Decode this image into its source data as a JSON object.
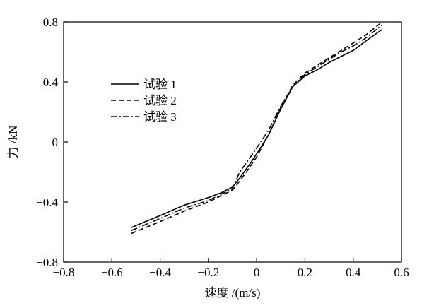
{
  "chart_data": {
    "type": "line",
    "title": "",
    "xlabel": "速度 /(m/s)",
    "ylabel": "力 /kN",
    "xlim": [
      -0.8,
      0.6
    ],
    "ylim": [
      -0.8,
      0.8
    ],
    "xticks": [
      -0.8,
      -0.6,
      -0.4,
      -0.2,
      0,
      0.2,
      0.4,
      0.6
    ],
    "yticks": [
      -0.8,
      -0.4,
      0,
      0.4,
      0.8
    ],
    "xtick_labels": [
      "−0.8",
      "−0.6",
      "−0.4",
      "−0.2",
      "0",
      "0.2",
      "0.4",
      "0.6"
    ],
    "ytick_labels": [
      "−0.8",
      "−0.4",
      "0",
      "0.4",
      "0.8"
    ],
    "grid": false,
    "legend_position": "upper-left",
    "series": [
      {
        "name": "试验 1",
        "style": "solid",
        "color": "#000000",
        "x": [
          -0.52,
          -0.4,
          -0.3,
          -0.2,
          -0.15,
          -0.1,
          -0.07,
          -0.03,
          0.0,
          0.05,
          0.1,
          0.15,
          0.2,
          0.25,
          0.3,
          0.35,
          0.4,
          0.45,
          0.52
        ],
        "y": [
          -0.57,
          -0.49,
          -0.42,
          -0.37,
          -0.34,
          -0.3,
          -0.24,
          -0.15,
          -0.08,
          0.05,
          0.22,
          0.37,
          0.44,
          0.48,
          0.53,
          0.57,
          0.61,
          0.67,
          0.75
        ]
      },
      {
        "name": "试验 2",
        "style": "dashed",
        "color": "#000000",
        "x": [
          -0.52,
          -0.4,
          -0.3,
          -0.2,
          -0.15,
          -0.1,
          -0.07,
          -0.03,
          0.0,
          0.05,
          0.1,
          0.15,
          0.2,
          0.25,
          0.3,
          0.35,
          0.4,
          0.45,
          0.52
        ],
        "y": [
          -0.61,
          -0.53,
          -0.46,
          -0.4,
          -0.36,
          -0.32,
          -0.26,
          -0.17,
          -0.1,
          0.05,
          0.23,
          0.38,
          0.46,
          0.51,
          0.56,
          0.61,
          0.66,
          0.71,
          0.8
        ]
      },
      {
        "name": "试验 3",
        "style": "dashdot",
        "color": "#000000",
        "x": [
          -0.52,
          -0.4,
          -0.3,
          -0.2,
          -0.15,
          -0.1,
          -0.07,
          -0.03,
          0.0,
          0.05,
          0.1,
          0.15,
          0.2,
          0.25,
          0.3,
          0.35,
          0.4,
          0.45,
          0.52
        ],
        "y": [
          -0.59,
          -0.51,
          -0.44,
          -0.39,
          -0.35,
          -0.31,
          -0.2,
          -0.11,
          -0.04,
          0.08,
          0.24,
          0.37,
          0.45,
          0.5,
          0.55,
          0.6,
          0.64,
          0.69,
          0.78
        ]
      }
    ]
  }
}
